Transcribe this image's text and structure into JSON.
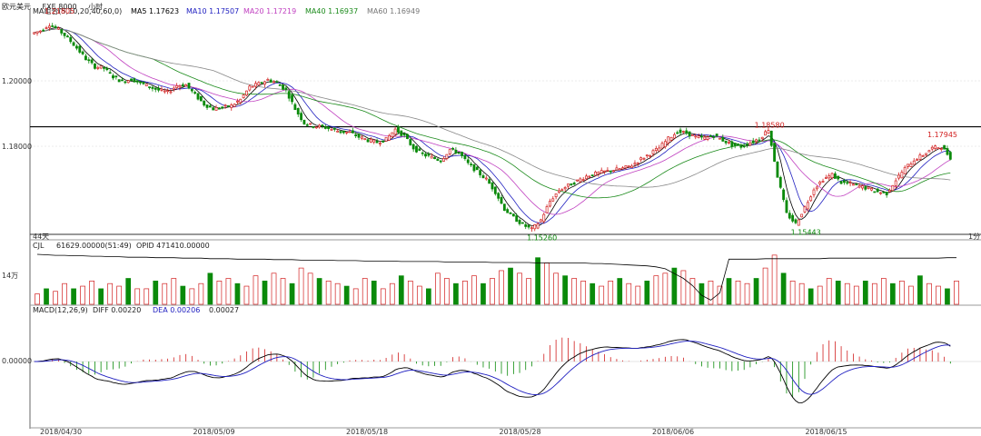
{
  "window": {
    "title": "欧元美元",
    "code": "FXE 8000",
    "period": "小时"
  },
  "legend": {
    "ma_label": "MA组合(5,10,20,40,60,0)",
    "ma5": "MA5 1.17623",
    "ma10": "MA10 1.17507",
    "ma20": "MA20 1.17219",
    "ma40": "MA40 1.16937",
    "ma60": "MA60 1.16949",
    "cjl": "CJL",
    "cjl_value": "61629.00000(51:49)",
    "opid": "OPID 471410.00000",
    "macd": "MACD(12,26,9)",
    "diff": "DIFF 0.00220",
    "dea": "DEA 0.00206",
    "macd_value": "0.00027",
    "axis_note": "44天",
    "axis_right": "1分",
    "vol_tick": "14万"
  },
  "colors": {
    "up": "#d21f1f",
    "down": "#0a8a0a",
    "ma5": "#000000",
    "ma10": "#2020c0",
    "ma20": "#c040c0",
    "ma40": "#1a8a1a",
    "ma60": "#888888",
    "level": "#000000"
  },
  "chart_data": {
    "type": "candlestick",
    "y_ticks": [
      "1.20000",
      "1.18000"
    ],
    "macd_tick": "0.00000",
    "x_labels": [
      "2018/04/30",
      "2018/05/09",
      "2018/05/18",
      "2018/05/28",
      "2018/06/06",
      "2018/06/15"
    ],
    "annotations": [
      {
        "text": "1.21805",
        "type": "high"
      },
      {
        "text": "1.18580",
        "type": "high"
      },
      {
        "text": "1.17945",
        "type": "high"
      },
      {
        "text": "1.15260",
        "type": "low"
      },
      {
        "text": "1.15443",
        "type": "low"
      }
    ],
    "horizontal_level": 1.1858,
    "ylim": [
      1.152,
      1.2205
    ],
    "price_path": [
      1.2155,
      1.2165,
      1.2185,
      1.2168,
      1.2142,
      1.211,
      1.2075,
      1.205,
      1.2045,
      1.2018,
      1.2002,
      1.201,
      1.1998,
      1.1985,
      1.1975,
      1.1968,
      1.199,
      1.1992,
      1.196,
      1.193,
      1.1915,
      1.192,
      1.1925,
      1.1945,
      1.1985,
      1.1995,
      1.2008,
      1.1998,
      1.1975,
      1.1915,
      1.187,
      1.186,
      1.1858,
      1.185,
      1.1842,
      1.184,
      1.1825,
      1.1815,
      1.1808,
      1.1818,
      1.185,
      1.1828,
      1.179,
      1.177,
      1.176,
      1.175,
      1.1785,
      1.1775,
      1.174,
      1.1715,
      1.169,
      1.165,
      1.1595,
      1.1568,
      1.1545,
      1.153,
      1.156,
      1.162,
      1.1655,
      1.167,
      1.1685,
      1.17,
      1.1708,
      1.1715,
      1.172,
      1.1725,
      1.1735,
      1.1755,
      1.1772,
      1.179,
      1.182,
      1.1842,
      1.1838,
      1.1825,
      1.1822,
      1.183,
      1.1815,
      1.18,
      1.1795,
      1.1808,
      1.182,
      1.185,
      1.17,
      1.158,
      1.1548,
      1.16,
      1.166,
      1.169,
      1.1705,
      1.168,
      1.1675,
      1.1668,
      1.166,
      1.165,
      1.1645,
      1.1688,
      1.1725,
      1.1752,
      1.1768,
      1.179,
      1.1794,
      1.176
    ],
    "volume_path": [
      0.2,
      0.3,
      0.25,
      0.4,
      0.3,
      0.35,
      0.45,
      0.3,
      0.4,
      0.35,
      0.5,
      0.3,
      0.3,
      0.45,
      0.4,
      0.5,
      0.35,
      0.3,
      0.4,
      0.6,
      0.45,
      0.5,
      0.4,
      0.35,
      0.55,
      0.45,
      0.6,
      0.5,
      0.4,
      0.7,
      0.6,
      0.5,
      0.45,
      0.4,
      0.35,
      0.3,
      0.5,
      0.45,
      0.3,
      0.4,
      0.55,
      0.45,
      0.35,
      0.3,
      0.6,
      0.5,
      0.4,
      0.45,
      0.55,
      0.4,
      0.5,
      0.65,
      0.7,
      0.6,
      0.5,
      0.9,
      0.8,
      0.6,
      0.55,
      0.5,
      0.45,
      0.4,
      0.35,
      0.45,
      0.5,
      0.4,
      0.35,
      0.45,
      0.55,
      0.6,
      0.7,
      0.65,
      0.5,
      0.4,
      0.45,
      0.35,
      0.5,
      0.45,
      0.4,
      0.5,
      0.7,
      0.95,
      0.6,
      0.45,
      0.4,
      0.3,
      0.35,
      0.5,
      0.45,
      0.4,
      0.35,
      0.45,
      0.4,
      0.5,
      0.4,
      0.45,
      0.35,
      0.55,
      0.4,
      0.35,
      0.3,
      0.45
    ],
    "opid_path": [
      1.0,
      0.99,
      0.98,
      0.98,
      0.97,
      0.97,
      0.96,
      0.96,
      0.95,
      0.95,
      0.94,
      0.94,
      0.94,
      0.93,
      0.93,
      0.93,
      0.92,
      0.92,
      0.92,
      0.91,
      0.91,
      0.91,
      0.9,
      0.9,
      0.9,
      0.9,
      0.89,
      0.89,
      0.89,
      0.88,
      0.88,
      0.88,
      0.88,
      0.87,
      0.87,
      0.87,
      0.86,
      0.86,
      0.86,
      0.86,
      0.85,
      0.85,
      0.85,
      0.85,
      0.85,
      0.84,
      0.84,
      0.84,
      0.84,
      0.84,
      0.83,
      0.83,
      0.83,
      0.83,
      0.83,
      0.82,
      0.82,
      0.82,
      0.82,
      0.82,
      0.82,
      0.81,
      0.81,
      0.8,
      0.79,
      0.78,
      0.77,
      0.76,
      0.74,
      0.7,
      0.6,
      0.5,
      0.35,
      0.15,
      0.05,
      0.2,
      0.9,
      0.9,
      0.9,
      0.9,
      0.91,
      0.91,
      0.91,
      0.91,
      0.91,
      0.91,
      0.91,
      0.92,
      0.92,
      0.92,
      0.92,
      0.92,
      0.92,
      0.92,
      0.92,
      0.92,
      0.92,
      0.92,
      0.92,
      0.92,
      0.93,
      0.93
    ]
  }
}
